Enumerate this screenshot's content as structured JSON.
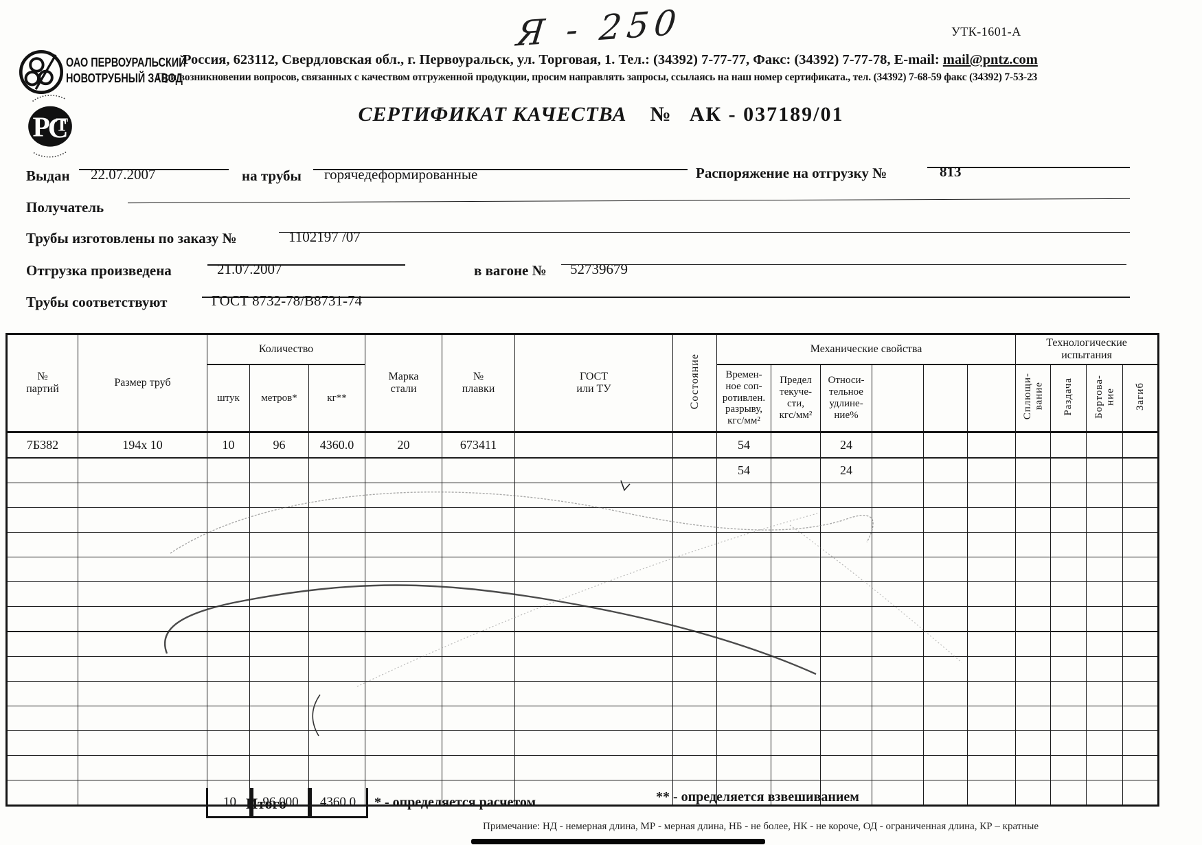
{
  "scan": {
    "handwritten_mark": "Я - 250",
    "form_code": "УТК-1601-А"
  },
  "company": {
    "org_line1": "ОАО ПЕРВОУРАЛЬСКИЙ",
    "org_line2": "НОВОТРУБНЫЙ ЗАВОД",
    "address": "Россия, 623112, Свердловская обл., г. Первоуральск, ул. Торговая, 1. Тел.: (34392) 7-77-77, Факс: (34392) 7-77-78,  E-mail: ",
    "email": "mail@pntz.com",
    "quality_contact_note": "При возникновении вопросов, связанных с качеством отгруженной продукции, просим направлять запросы, ссылаясь на наш номер сертификата., тел. (34392) 7-68-59 факс (34392) 7-53-23",
    "rst_p": "Р",
    "rst_c": "С",
    "rst_t": "Т"
  },
  "title": {
    "label": "СЕРТИФИКАТ КАЧЕСТВА",
    "num_sign": "№",
    "number": "АК - 037189/01"
  },
  "fields": {
    "issued_label": "Выдан",
    "issued_value": "22.07.2007",
    "pipes_label": "на трубы",
    "pipes_value": "горячедеформированные",
    "ship_order_label": "Распоряжение на отгрузку №",
    "ship_order_value": "813",
    "receiver_label": "Получатель",
    "receiver_value": "",
    "made_order_label": "Трубы изготовлены по заказу №",
    "made_order_value": "1102197   /07",
    "shipped_label": "Отгрузка произведена",
    "shipped_value": "21.07.2007",
    "wagon_label": "в вагоне №",
    "wagon_value": "52739679",
    "conform_label": "Трубы соответствуют",
    "conform_value": "ГОСТ 8732-78/В8731-74"
  },
  "table": {
    "headers": {
      "col_party": "№\nпартий",
      "col_size": "Размер труб",
      "group_qty": "Количество",
      "col_pcs": "штук",
      "col_m": "метров*",
      "col_kg": "кг**",
      "col_steel": "Марка\nстали",
      "col_melt": "№\nплавки",
      "col_gost": "ГОСТ\nили ТУ",
      "col_state": "Состояние",
      "group_mech": "Механические свойства",
      "col_tensile": "Времен-\nное соп-\nротивлен.\nразрыву,\nкгс/мм²",
      "col_yield": "Предел\nтекуче-\nсти,\nкгс/мм²",
      "col_elong": "Относи-\nтельное\nудлине-\nние%",
      "group_tech": "Технологические\nиспытания",
      "col_flatten": "Сплющи-\nвание",
      "col_expand": "Раздача",
      "col_flange": "Бортова-\nние",
      "col_bend": "Загиб"
    },
    "rows": [
      [
        "7Б382",
        "194х 10",
        "10",
        "96",
        "4360.0",
        "20",
        "673411",
        "",
        "",
        "54",
        "",
        "24",
        "",
        "",
        "",
        "",
        "",
        "",
        ""
      ],
      [
        "",
        "",
        "",
        "",
        "",
        "",
        "",
        "",
        "",
        "54",
        "",
        "24",
        "",
        "",
        "",
        "",
        "",
        "",
        ""
      ],
      [
        "",
        "",
        "",
        "",
        "",
        "",
        "",
        "",
        "",
        "",
        "",
        "",
        "",
        "",
        "",
        "",
        "",
        "",
        ""
      ],
      [
        "",
        "",
        "",
        "",
        "",
        "",
        "",
        "",
        "",
        "",
        "",
        "",
        "",
        "",
        "",
        "",
        "",
        "",
        ""
      ],
      [
        "",
        "",
        "",
        "",
        "",
        "",
        "",
        "",
        "",
        "",
        "",
        "",
        "",
        "",
        "",
        "",
        "",
        "",
        ""
      ],
      [
        "",
        "",
        "",
        "",
        "",
        "",
        "",
        "",
        "",
        "",
        "",
        "",
        "",
        "",
        "",
        "",
        "",
        "",
        ""
      ],
      [
        "",
        "",
        "",
        "",
        "",
        "",
        "",
        "",
        "",
        "",
        "",
        "",
        "",
        "",
        "",
        "",
        "",
        "",
        ""
      ],
      [
        "",
        "",
        "",
        "",
        "",
        "",
        "",
        "",
        "",
        "",
        "",
        "",
        "",
        "",
        "",
        "",
        "",
        "",
        ""
      ],
      [
        "",
        "",
        "",
        "",
        "",
        "",
        "",
        "",
        "",
        "",
        "",
        "",
        "",
        "",
        "",
        "",
        "",
        "",
        ""
      ],
      [
        "",
        "",
        "",
        "",
        "",
        "",
        "",
        "",
        "",
        "",
        "",
        "",
        "",
        "",
        "",
        "",
        "",
        "",
        ""
      ],
      [
        "",
        "",
        "",
        "",
        "",
        "",
        "",
        "",
        "",
        "",
        "",
        "",
        "",
        "",
        "",
        "",
        "",
        "",
        ""
      ],
      [
        "",
        "",
        "",
        "",
        "",
        "",
        "",
        "",
        "",
        "",
        "",
        "",
        "",
        "",
        "",
        "",
        "",
        "",
        ""
      ],
      [
        "",
        "",
        "",
        "",
        "",
        "",
        "",
        "",
        "",
        "",
        "",
        "",
        "",
        "",
        "",
        "",
        "",
        "",
        ""
      ],
      [
        "",
        "",
        "",
        "",
        "",
        "",
        "",
        "",
        "",
        "",
        "",
        "",
        "",
        "",
        "",
        "",
        "",
        "",
        ""
      ],
      [
        "",
        "",
        "",
        "",
        "",
        "",
        "",
        "",
        "",
        "",
        "",
        "",
        "",
        "",
        "",
        "",
        "",
        "",
        ""
      ]
    ],
    "totals": {
      "label": "Итого",
      "pieces": "10",
      "meters": "96.000",
      "kg": "4360.0"
    }
  },
  "footnotes": {
    "calc": "* - определяется расчетом",
    "weigh": "** - определяется взвешиванием",
    "note": "Примечание: НД - немерная длина, МР - мерная длина, НБ - не более, НК - не короче, ОД - ограниченная длина, КР – кратные"
  }
}
